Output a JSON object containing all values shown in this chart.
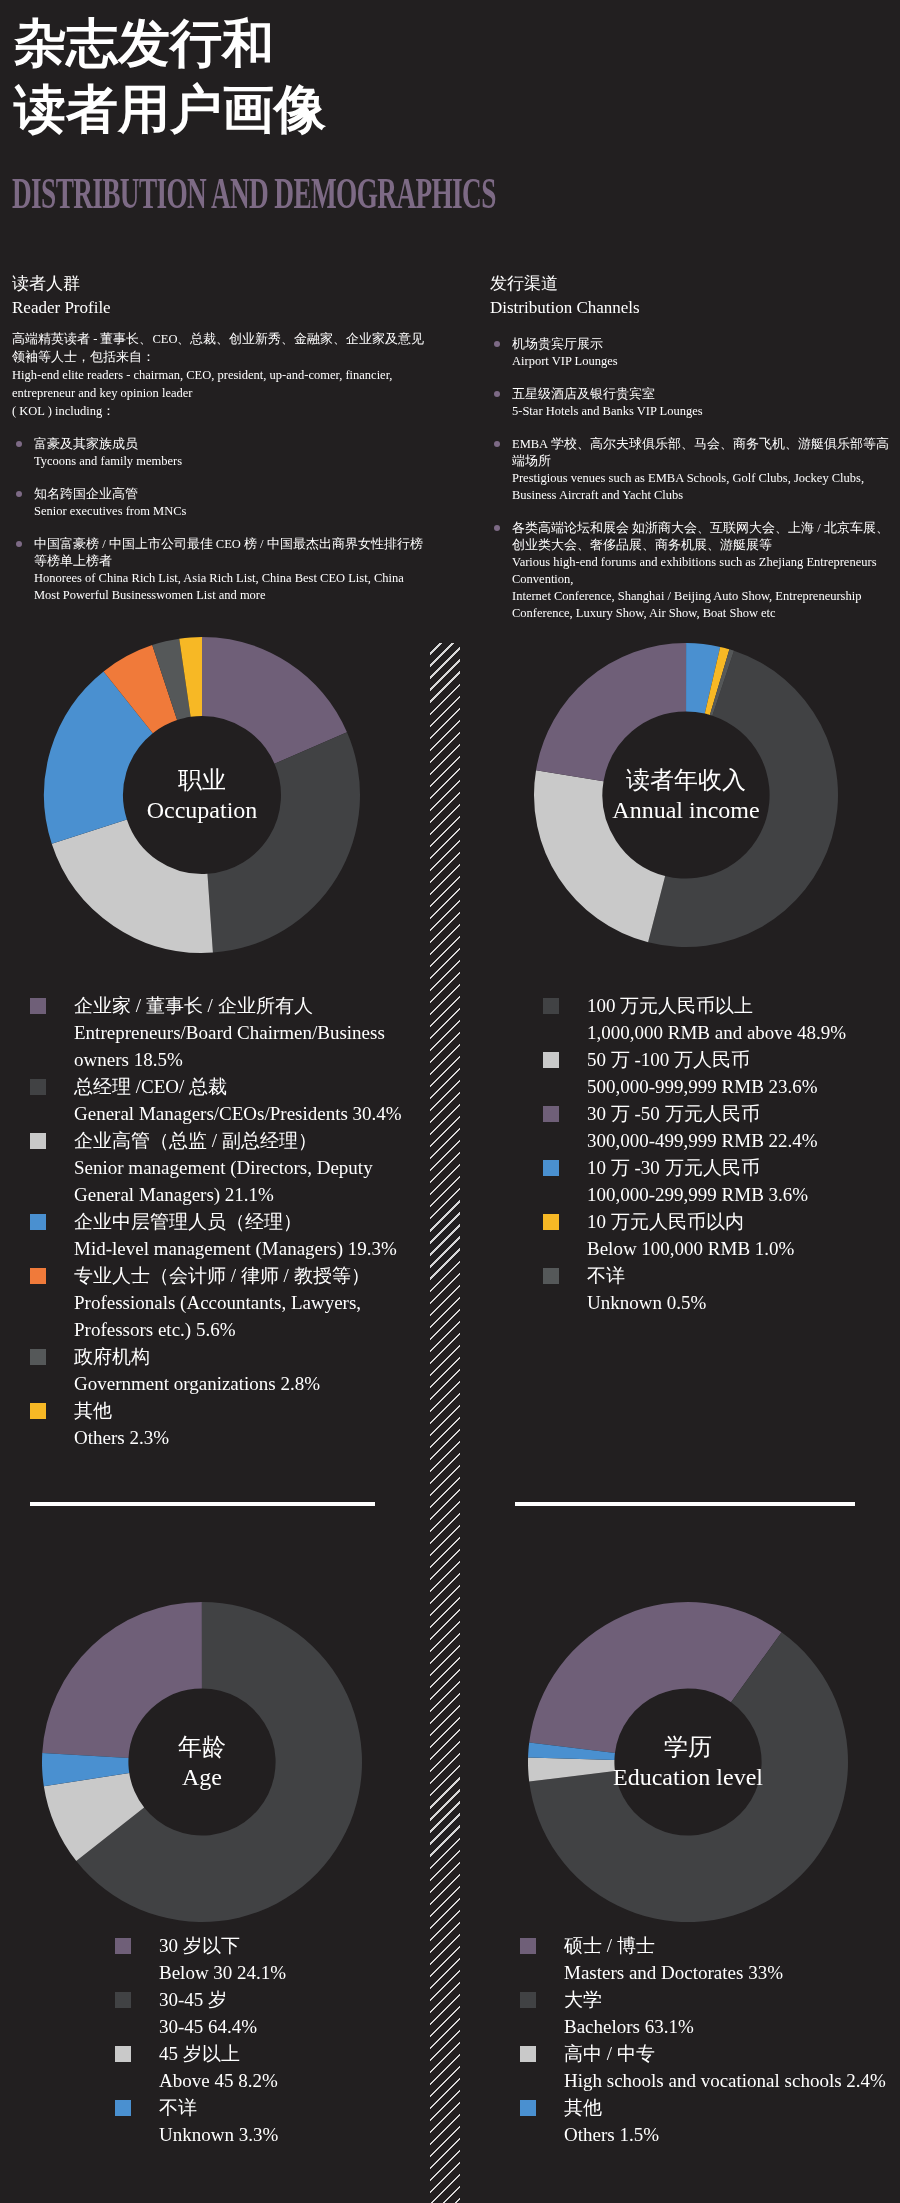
{
  "chart_data": [
    {
      "type": "other",
      "title": "杂志发行和读者用户画像",
      "subtitle": "DISTRIBUTION AND DEMOGRAPHICS"
    },
    {
      "type": "other",
      "title": "读者人群\nReader Profile",
      "subtitle": "高端精英读者 - 董事长、CEO、总裁、创业新秀、金融家、企业家及意见领袖等人士，包括来自：\nHigh-end elite readers - chairman, CEO, president, up-and-comer, financier, entrepreneur and key opinion leader\n( KOL ) including：",
      "annotations": [
        "富豪及其家族成员\nTycoons and family members",
        "知名跨国企业高管\nSenior executives from MNCs",
        "中国富豪榜 / 中国上市公司最佳 CEO 榜 / 中国最杰出商界女性排行榜等榜单上榜者\nHonorees of China Rich List, Asia Rich List, China Best CEO List, China Most Powerful Businesswomen List and more"
      ]
    },
    {
      "type": "other",
      "title": "发行渠道\nDistribution Channels",
      "annotations": [
        "机场贵宾厅展示\nAirport VIP Lounges",
        "五星级酒店及银行贵宾室\n5-Star Hotels and Banks VIP Lounges",
        "EMBA 学校、高尔夫球俱乐部、马会、商务飞机、游艇俱乐部等高端场所\nPrestigious venues such as EMBA Schools, Golf Clubs, Jockey Clubs, Business Aircraft and Yacht Clubs",
        "各类高端论坛和展会 如浙商大会、互联网大会、上海 / 北京车展、创业类大会、奢侈品展、商务机展、游艇展等\nVarious high-end forums and exhibitions such as Zhejiang Entrepreneurs Convention,\nInternet Conference, Shanghai / Beijing Auto Show, Entrepreneurship Conference, Luxury Show, Air Show, Boat Show etc"
      ]
    },
    {
      "type": "donut",
      "title": "职业\nOccupation",
      "legend": "bottom",
      "categories": [
        "企业家 / 董事长 / 企业所有人\nEntrepreneurs/Board Chairmen/Business owners",
        "总经理 /CEO/ 总裁\nGeneral Managers/CEOs/Presidents",
        "企业高管（总监 / 副总经理）\nSenior management (Directors, Deputy General Managers)",
        "企业中层管理人员（经理）\nMid-level management (Managers)",
        "专业人士（会计师 / 律师 / 教授等）\nProfessionals (Accountants, Lawyers, Professors etc.)",
        "政府机构\nGovernment organizations",
        "其他\nOthers"
      ],
      "values": [
        18.5,
        30.4,
        21.1,
        19.3,
        5.6,
        2.8,
        2.3
      ],
      "value_labels": [
        "18.5%",
        "30.4%",
        "21.1%",
        "19.3%",
        "5.6%",
        "2.8%",
        "2.3%"
      ],
      "colors": [
        "#6f5f78",
        "#414244",
        "#c9c9c9",
        "#4a90d0",
        "#f07a3a",
        "#555859",
        "#f7b825"
      ]
    },
    {
      "type": "donut",
      "title": "读者年收入\nAnnual income",
      "legend": "bottom",
      "categories": [
        "100 万元人民币以上\n1,000,000 RMB and above",
        "50 万 -100 万人民币\n500,000-999,999 RMB",
        "30 万 -50 万元人民币\n300,000-499,999 RMB",
        "10 万 -30 万元人民币\n100,000-299,999 RMB",
        "10 万元人民币以内\nBelow 100,000 RMB",
        "不详\nUnknown"
      ],
      "values": [
        48.9,
        23.6,
        22.4,
        3.6,
        1.0,
        0.5
      ],
      "value_labels": [
        "48.9%",
        "23.6%",
        "22.4%",
        "3.6%",
        "1.0%",
        "0.5%"
      ],
      "colors": [
        "#414244",
        "#c9c9c9",
        "#6f5f78",
        "#4a90d0",
        "#f7b825",
        "#555859"
      ]
    },
    {
      "type": "donut",
      "title": "年龄\nAge",
      "legend": "bottom",
      "categories": [
        "30 岁以下\nBelow 30",
        "30-45 岁\n30-45",
        "45 岁以上\nAbove 45",
        "不详\nUnknown"
      ],
      "values": [
        24.1,
        64.4,
        8.2,
        3.3
      ],
      "value_labels": [
        "24.1%",
        "64.4%",
        "8.2%",
        "3.3%"
      ],
      "colors": [
        "#6f5f78",
        "#414244",
        "#c9c9c9",
        "#4a90d0"
      ]
    },
    {
      "type": "donut",
      "title": "学历\nEducation level",
      "legend": "bottom",
      "categories": [
        "硕士 / 博士\nMasters and Doctorates",
        "大学\nBachelors",
        "高中 / 中专\nHigh schools and vocational schools",
        "其他\nOthers"
      ],
      "values": [
        33,
        63.1,
        2.4,
        1.5
      ],
      "value_labels": [
        "33%",
        "63.1%",
        "2.4%",
        "1.5%"
      ],
      "colors": [
        "#6f5f78",
        "#414244",
        "#c9c9c9",
        "#4a90d0"
      ]
    }
  ]
}
